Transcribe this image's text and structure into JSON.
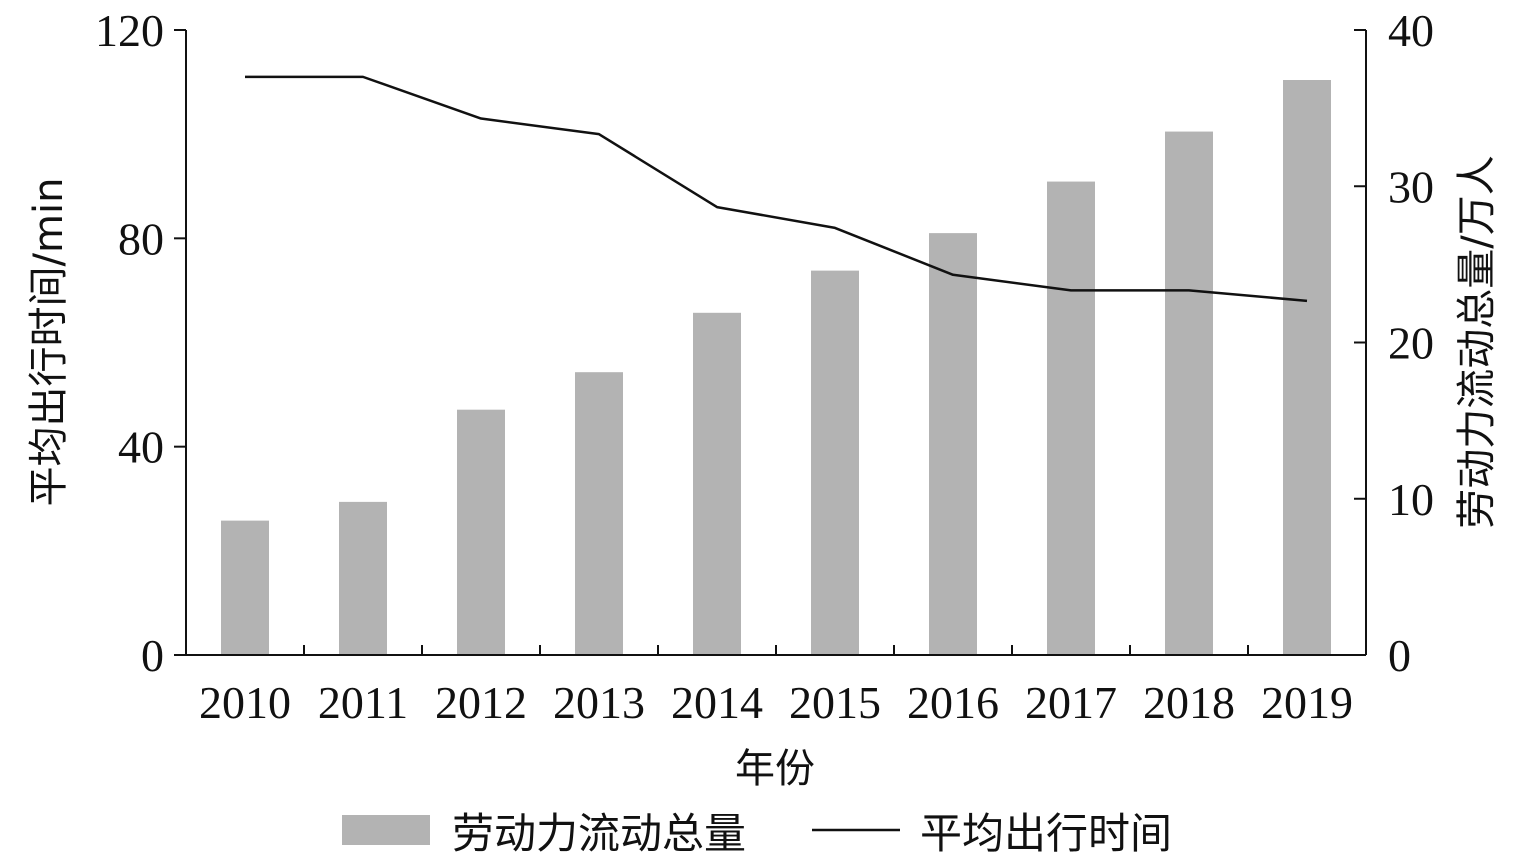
{
  "chart_data": {
    "type": "bar",
    "categories": [
      "2010",
      "2011",
      "2012",
      "2013",
      "2014",
      "2015",
      "2016",
      "2017",
      "2018",
      "2019"
    ],
    "xlabel": "年份",
    "y_left": {
      "label": "平均出行时间/min",
      "range": [
        0,
        120
      ],
      "ticks": [
        0,
        40,
        80,
        120
      ]
    },
    "y_right": {
      "label": "劳动力流动总量/万人",
      "range": [
        0,
        40
      ],
      "ticks": [
        0,
        10,
        20,
        30,
        40
      ]
    },
    "series": [
      {
        "name": "劳动力流动总量",
        "type": "bar",
        "axis": "right",
        "color": "#b3b3b3",
        "values": [
          8.6,
          9.8,
          15.7,
          18.1,
          21.9,
          24.6,
          27.0,
          30.3,
          33.5,
          36.8
        ]
      },
      {
        "name": "平均出行时间",
        "type": "line",
        "axis": "left",
        "color": "#111111",
        "values": [
          111,
          111,
          103,
          100,
          86,
          82,
          73,
          70,
          70,
          68
        ]
      }
    ],
    "grid": false,
    "legend_position": "bottom"
  }
}
